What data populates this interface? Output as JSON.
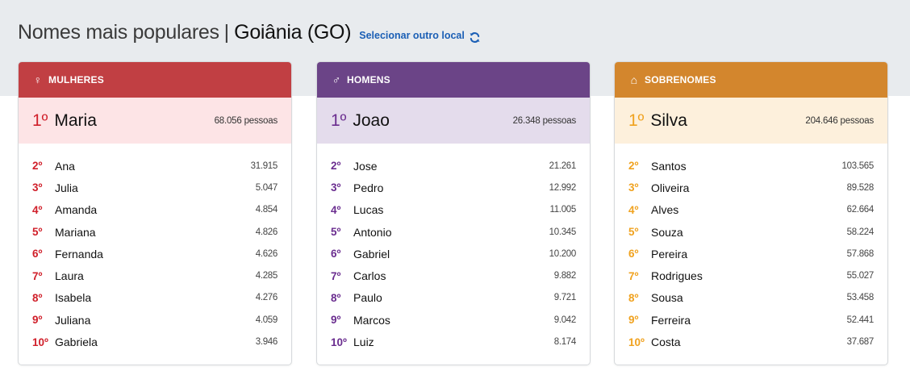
{
  "header": {
    "title": "Nomes mais populares",
    "separator": "|",
    "place": "Goiânia (GO)",
    "change_link": "Selecionar outro local",
    "refresh_icon": "refresh-icon"
  },
  "colors": {
    "mulheres": "#c13f43",
    "homens": "#6b4487",
    "sobrenomes": "#d3862d",
    "link": "#1b5fb5"
  },
  "cards": [
    {
      "key": "mulheres",
      "icon": "female-icon",
      "icon_glyph": "♀",
      "title": "MULHERES",
      "top": {
        "rank": "1º",
        "name": "Maria",
        "count": "68.056 pessoas"
      },
      "items": [
        {
          "rank": "2º",
          "name": "Ana",
          "count": "31.915"
        },
        {
          "rank": "3º",
          "name": "Julia",
          "count": "5.047"
        },
        {
          "rank": "4º",
          "name": "Amanda",
          "count": "4.854"
        },
        {
          "rank": "5º",
          "name": "Mariana",
          "count": "4.826"
        },
        {
          "rank": "6º",
          "name": "Fernanda",
          "count": "4.626"
        },
        {
          "rank": "7º",
          "name": "Laura",
          "count": "4.285"
        },
        {
          "rank": "8º",
          "name": "Isabela",
          "count": "4.276"
        },
        {
          "rank": "9º",
          "name": "Juliana",
          "count": "4.059"
        },
        {
          "rank": "10º",
          "name": "Gabriela",
          "count": "3.946"
        }
      ]
    },
    {
      "key": "homens",
      "icon": "male-icon",
      "icon_glyph": "♂",
      "title": "HOMENS",
      "top": {
        "rank": "1º",
        "name": "Joao",
        "count": "26.348 pessoas"
      },
      "items": [
        {
          "rank": "2º",
          "name": "Jose",
          "count": "21.261"
        },
        {
          "rank": "3º",
          "name": "Pedro",
          "count": "12.992"
        },
        {
          "rank": "4º",
          "name": "Lucas",
          "count": "11.005"
        },
        {
          "rank": "5º",
          "name": "Antonio",
          "count": "10.345"
        },
        {
          "rank": "6º",
          "name": "Gabriel",
          "count": "10.200"
        },
        {
          "rank": "7º",
          "name": "Carlos",
          "count": "9.882"
        },
        {
          "rank": "8º",
          "name": "Paulo",
          "count": "9.721"
        },
        {
          "rank": "9º",
          "name": "Marcos",
          "count": "9.042"
        },
        {
          "rank": "10º",
          "name": "Luiz",
          "count": "8.174"
        }
      ]
    },
    {
      "key": "sobrenomes",
      "icon": "family-icon",
      "icon_glyph": "⌂",
      "title": "SOBRENOMES",
      "top": {
        "rank": "1º",
        "name": "Silva",
        "count": "204.646 pessoas"
      },
      "items": [
        {
          "rank": "2º",
          "name": "Santos",
          "count": "103.565"
        },
        {
          "rank": "3º",
          "name": "Oliveira",
          "count": "89.528"
        },
        {
          "rank": "4º",
          "name": "Alves",
          "count": "62.664"
        },
        {
          "rank": "5º",
          "name": "Souza",
          "count": "58.224"
        },
        {
          "rank": "6º",
          "name": "Pereira",
          "count": "57.868"
        },
        {
          "rank": "7º",
          "name": "Rodrigues",
          "count": "55.027"
        },
        {
          "rank": "8º",
          "name": "Sousa",
          "count": "53.458"
        },
        {
          "rank": "9º",
          "name": "Ferreira",
          "count": "52.441"
        },
        {
          "rank": "10º",
          "name": "Costa",
          "count": "37.687"
        }
      ]
    }
  ]
}
